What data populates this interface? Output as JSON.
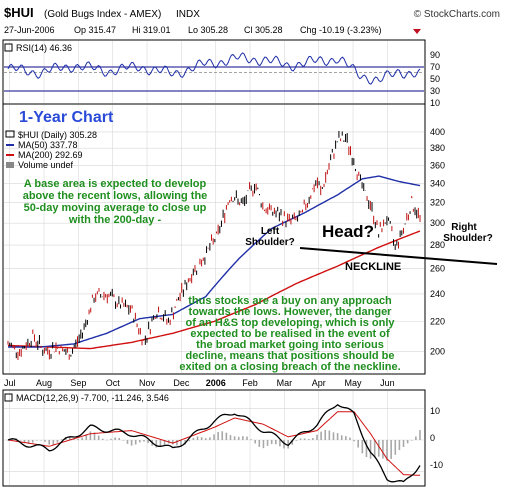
{
  "header": {
    "symbol": "$HUI",
    "index_name": "(Gold Bugs Index - AMEX)",
    "index_type": "INDX",
    "date": "27-Jun-2006",
    "op": "Op 315.47",
    "hi": "Hi 319.01",
    "lo": "Lo 305.28",
    "cl": "Cl 305.28",
    "chg": "Chg -10.19 (-3.23%)",
    "watermark": "© StockCharts.com"
  },
  "rsi": {
    "label": "RSI(14) 46.36",
    "ticks": [
      "90",
      "70",
      "50",
      "30",
      "10"
    ]
  },
  "main": {
    "title": "1-Year Chart",
    "legend": [
      {
        "text": "$HUI (Daily) 305.28",
        "color": "#000000"
      },
      {
        "text": "MA(50) 337.78",
        "color": "#1f2fa8"
      },
      {
        "text": "MA(200) 292.69",
        "color": "#d01010"
      },
      {
        "text": "Volume undef",
        "color": "#555555"
      }
    ],
    "y_ticks": [
      "400",
      "380",
      "360",
      "340",
      "320",
      "300",
      "280",
      "260",
      "240",
      "220",
      "200"
    ]
  },
  "annotations": {
    "base_area": [
      "A base area is expected to develop",
      "above the recent lows, allowing the",
      "50-day moving average to close up",
      "with the 200-day -"
    ],
    "left_shoulder": [
      "Left",
      "Shoulder?"
    ],
    "head": "Head?",
    "right_shoulder": [
      "Right",
      "Shoulder?"
    ],
    "neckline": "NECKLINE",
    "stocks_buy": [
      "thus stocks are a buy on any approach",
      "towards the lows. However, the danger",
      "of an H&S top developing, which is only",
      "expected to be realised in the event of",
      "the broad market going into serious",
      "decline, means that positions should be",
      "exited on a closing breach of the neckline."
    ]
  },
  "x_axis": {
    "labels": [
      "Jul",
      "Aug",
      "Sep",
      "Oct",
      "Nov",
      "Dec",
      "2006",
      "Feb",
      "Mar",
      "Apr",
      "May",
      "Jun"
    ]
  },
  "macd": {
    "label": "MACD(12,26,9) -7.700, -11.246, 3.546",
    "ticks": [
      "10",
      "0",
      "-10"
    ]
  },
  "colors": {
    "price": "#000000",
    "ma50": "#1f2fa8",
    "ma200": "#d01010",
    "annotation": "#1f8f1f",
    "title": "#2a4ad8",
    "grid": "#d8d8d8",
    "histogram": "#a8a8a8",
    "rsi_band": "#3a3aa0"
  },
  "chart_data": {
    "type": "line",
    "title": "$HUI (Gold Bugs Index - AMEX) INDX",
    "x_range": [
      "2005-07-01",
      "2006-06-27"
    ],
    "ylim": [
      190,
      405
    ],
    "scale": "log",
    "series": [
      {
        "name": "$HUI (Daily)",
        "x": [
          0,
          0.03,
          0.06,
          0.09,
          0.12,
          0.15,
          0.18,
          0.21,
          0.24,
          0.27,
          0.3,
          0.33,
          0.36,
          0.39,
          0.42,
          0.45,
          0.48,
          0.51,
          0.54,
          0.57,
          0.6,
          0.62,
          0.65,
          0.68,
          0.71,
          0.73,
          0.75,
          0.76,
          0.78,
          0.8,
          0.82,
          0.84,
          0.86,
          0.88,
          0.9,
          0.92,
          0.94,
          0.96,
          0.98,
          1.0
        ],
        "values": [
          205,
          200,
          210,
          200,
          203,
          198,
          212,
          238,
          240,
          232,
          228,
          206,
          228,
          220,
          240,
          258,
          272,
          290,
          328,
          318,
          340,
          315,
          310,
          302,
          305,
          325,
          342,
          330,
          360,
          390,
          392,
          365,
          335,
          318,
          290,
          305,
          278,
          295,
          320,
          305
        ]
      },
      {
        "name": "MA(50)",
        "x": [
          0,
          0.08,
          0.16,
          0.24,
          0.32,
          0.4,
          0.48,
          0.56,
          0.64,
          0.72,
          0.8,
          0.86,
          0.9,
          0.95,
          1.0
        ],
        "values": [
          203,
          203,
          205,
          212,
          222,
          225,
          238,
          268,
          295,
          310,
          328,
          345,
          348,
          342,
          337.78
        ]
      },
      {
        "name": "MA(200)",
        "x": [
          0,
          0.1,
          0.2,
          0.3,
          0.4,
          0.5,
          0.6,
          0.7,
          0.8,
          0.9,
          1.0
        ],
        "values": [
          204,
          203,
          202,
          206,
          212,
          220,
          232,
          248,
          262,
          278,
          292.69
        ]
      }
    ],
    "rsi": {
      "ylim": [
        10,
        90
      ],
      "x": [
        0,
        0.08,
        0.16,
        0.24,
        0.32,
        0.4,
        0.48,
        0.56,
        0.62,
        0.68,
        0.74,
        0.8,
        0.85,
        0.9,
        0.95,
        1.0
      ],
      "values": [
        55,
        50,
        60,
        52,
        58,
        48,
        62,
        70,
        68,
        60,
        65,
        70,
        48,
        38,
        52,
        46.36
      ]
    },
    "macd": {
      "ylim": [
        -14,
        14
      ],
      "x": [
        0,
        0.1,
        0.2,
        0.3,
        0.4,
        0.5,
        0.55,
        0.62,
        0.68,
        0.75,
        0.8,
        0.84,
        0.88,
        0.92,
        0.96,
        1.0
      ],
      "values": [
        0,
        -3,
        4,
        2,
        -3,
        6,
        9,
        3,
        -1,
        5,
        12,
        8,
        -4,
        -12,
        -14,
        -7.7
      ],
      "signal": [
        0,
        -2,
        2,
        3,
        -1,
        4,
        7,
        5,
        1,
        3,
        9,
        9,
        2,
        -6,
        -11,
        -11.246
      ]
    }
  }
}
